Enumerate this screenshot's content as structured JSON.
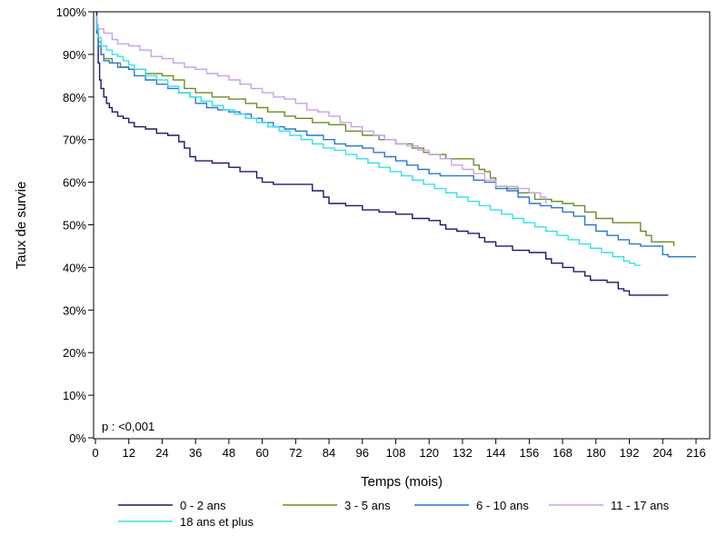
{
  "chart_data": {
    "type": "line",
    "step": true,
    "title": "",
    "xlabel": "Temps (mois)",
    "ylabel": "Taux de survie",
    "xlim": [
      0,
      220
    ],
    "ylim": [
      0,
      100
    ],
    "xticks": [
      0,
      12,
      24,
      36,
      48,
      60,
      72,
      84,
      96,
      108,
      120,
      132,
      144,
      156,
      168,
      180,
      192,
      204,
      216
    ],
    "yticks": [
      0,
      10,
      20,
      30,
      40,
      50,
      60,
      70,
      80,
      90,
      100
    ],
    "ytick_labels": [
      "0%",
      "10%",
      "20%",
      "30%",
      "40%",
      "50%",
      "60%",
      "70%",
      "80%",
      "90%",
      "100%"
    ],
    "grid": false,
    "legend_position": "bottom",
    "annotation": "p : <0,001",
    "series": [
      {
        "name": "0 - 2 ans",
        "color": "#1a1a6e",
        "points": [
          [
            0,
            100
          ],
          [
            0.5,
            95
          ],
          [
            1,
            88
          ],
          [
            1.5,
            84
          ],
          [
            2,
            82
          ],
          [
            3,
            80
          ],
          [
            4,
            78.5
          ],
          [
            5,
            77.5
          ],
          [
            6,
            76.5
          ],
          [
            8,
            75.5
          ],
          [
            10,
            75
          ],
          [
            12,
            74
          ],
          [
            14,
            73
          ],
          [
            18,
            72.5
          ],
          [
            22,
            71.5
          ],
          [
            26,
            71
          ],
          [
            30,
            69.5
          ],
          [
            32,
            68
          ],
          [
            34,
            66
          ],
          [
            36,
            65
          ],
          [
            42,
            64.5
          ],
          [
            48,
            63.5
          ],
          [
            52,
            62.5
          ],
          [
            58,
            61
          ],
          [
            60,
            60
          ],
          [
            64,
            59.5
          ],
          [
            72,
            59.5
          ],
          [
            78,
            58
          ],
          [
            82,
            56.5
          ],
          [
            84,
            55
          ],
          [
            90,
            54.5
          ],
          [
            96,
            53.5
          ],
          [
            102,
            53
          ],
          [
            108,
            52.5
          ],
          [
            114,
            51.5
          ],
          [
            120,
            51
          ],
          [
            124,
            50
          ],
          [
            126,
            49
          ],
          [
            130,
            48.5
          ],
          [
            134,
            48
          ],
          [
            138,
            47
          ],
          [
            140,
            46
          ],
          [
            144,
            45
          ],
          [
            150,
            44
          ],
          [
            156,
            43.5
          ],
          [
            162,
            42
          ],
          [
            164,
            41
          ],
          [
            168,
            40
          ],
          [
            172,
            39
          ],
          [
            176,
            38
          ],
          [
            178,
            37
          ],
          [
            184,
            36.5
          ],
          [
            188,
            35
          ],
          [
            190,
            34.5
          ],
          [
            192,
            33.5
          ],
          [
            198,
            33.5
          ],
          [
            206,
            33.5
          ]
        ]
      },
      {
        "name": "3 - 5 ans",
        "color": "#6b8e23",
        "points": [
          [
            0,
            99
          ],
          [
            0.5,
            96
          ],
          [
            1,
            93
          ],
          [
            2,
            90
          ],
          [
            3,
            89
          ],
          [
            6,
            88
          ],
          [
            9,
            87
          ],
          [
            12,
            86.5
          ],
          [
            18,
            85.5
          ],
          [
            24,
            85
          ],
          [
            28,
            84
          ],
          [
            32,
            82
          ],
          [
            36,
            81
          ],
          [
            42,
            80
          ],
          [
            48,
            79.5
          ],
          [
            54,
            78.5
          ],
          [
            58,
            77.5
          ],
          [
            62,
            76.5
          ],
          [
            68,
            75.5
          ],
          [
            72,
            75
          ],
          [
            78,
            74
          ],
          [
            84,
            73.5
          ],
          [
            90,
            72
          ],
          [
            96,
            71
          ],
          [
            102,
            70
          ],
          [
            108,
            69
          ],
          [
            114,
            68
          ],
          [
            118,
            67
          ],
          [
            120,
            66.5
          ],
          [
            126,
            65.5
          ],
          [
            132,
            65.5
          ],
          [
            136,
            64
          ],
          [
            138,
            63
          ],
          [
            140,
            62.5
          ],
          [
            142,
            61
          ],
          [
            144,
            59
          ],
          [
            148,
            58.5
          ],
          [
            152,
            57.5
          ],
          [
            158,
            56
          ],
          [
            164,
            55.5
          ],
          [
            168,
            55
          ],
          [
            172,
            54.5
          ],
          [
            176,
            53
          ],
          [
            180,
            51.5
          ],
          [
            186,
            50.5
          ],
          [
            192,
            50.5
          ],
          [
            196,
            48.5
          ],
          [
            198,
            47.5
          ],
          [
            200,
            46
          ],
          [
            204,
            46
          ],
          [
            208,
            46
          ],
          [
            208,
            45
          ]
        ]
      },
      {
        "name": "6 - 10 ans",
        "color": "#2b75d4",
        "points": [
          [
            0,
            98
          ],
          [
            0.5,
            95
          ],
          [
            1,
            92
          ],
          [
            2,
            90
          ],
          [
            3,
            88.5
          ],
          [
            5,
            88
          ],
          [
            8,
            87
          ],
          [
            12,
            86.5
          ],
          [
            14,
            85
          ],
          [
            18,
            84
          ],
          [
            22,
            83
          ],
          [
            26,
            82
          ],
          [
            30,
            81
          ],
          [
            34,
            80
          ],
          [
            36,
            78.5
          ],
          [
            40,
            77.5
          ],
          [
            44,
            77
          ],
          [
            48,
            76.5
          ],
          [
            52,
            76
          ],
          [
            56,
            75
          ],
          [
            60,
            74
          ],
          [
            64,
            73
          ],
          [
            68,
            72.5
          ],
          [
            72,
            72
          ],
          [
            76,
            71
          ],
          [
            82,
            70
          ],
          [
            86,
            69
          ],
          [
            90,
            68.5
          ],
          [
            96,
            68
          ],
          [
            100,
            67
          ],
          [
            104,
            66
          ],
          [
            108,
            65
          ],
          [
            112,
            64
          ],
          [
            116,
            63
          ],
          [
            120,
            62
          ],
          [
            124,
            61.5
          ],
          [
            132,
            61.5
          ],
          [
            136,
            60.5
          ],
          [
            140,
            60
          ],
          [
            144,
            58.5
          ],
          [
            148,
            58
          ],
          [
            152,
            56.5
          ],
          [
            156,
            55
          ],
          [
            160,
            54.5
          ],
          [
            164,
            54
          ],
          [
            168,
            53
          ],
          [
            172,
            52
          ],
          [
            176,
            50
          ],
          [
            180,
            48.5
          ],
          [
            184,
            47.5
          ],
          [
            188,
            46.5
          ],
          [
            192,
            45.5
          ],
          [
            196,
            45
          ],
          [
            200,
            45
          ],
          [
            204,
            43
          ],
          [
            206,
            42.5
          ],
          [
            216,
            42.5
          ]
        ]
      },
      {
        "name": "11 - 17 ans",
        "color": "#c9a0e8",
        "points": [
          [
            0,
            99
          ],
          [
            0.5,
            97
          ],
          [
            1,
            96
          ],
          [
            3,
            95
          ],
          [
            6,
            93.5
          ],
          [
            8,
            92.5
          ],
          [
            12,
            92
          ],
          [
            16,
            91
          ],
          [
            20,
            89.5
          ],
          [
            24,
            89
          ],
          [
            28,
            88
          ],
          [
            32,
            87
          ],
          [
            36,
            86.5
          ],
          [
            40,
            85.5
          ],
          [
            44,
            85
          ],
          [
            48,
            84
          ],
          [
            52,
            83
          ],
          [
            56,
            82
          ],
          [
            60,
            81
          ],
          [
            64,
            80
          ],
          [
            68,
            79.5
          ],
          [
            72,
            78.5
          ],
          [
            76,
            77
          ],
          [
            80,
            76.5
          ],
          [
            84,
            75.5
          ],
          [
            88,
            74
          ],
          [
            92,
            73
          ],
          [
            96,
            72
          ],
          [
            100,
            71
          ],
          [
            104,
            70
          ],
          [
            108,
            69
          ],
          [
            112,
            68.5
          ],
          [
            116,
            67.5
          ],
          [
            120,
            66.5
          ],
          [
            124,
            65.5
          ],
          [
            128,
            64
          ],
          [
            132,
            63
          ],
          [
            136,
            62
          ],
          [
            140,
            60.5
          ],
          [
            144,
            59
          ],
          [
            148,
            59
          ],
          [
            152,
            58.5
          ],
          [
            156,
            57.5
          ],
          [
            160,
            56.5
          ],
          [
            162,
            55
          ]
        ]
      },
      {
        "name": "18 ans et plus",
        "color": "#33e0e8",
        "points": [
          [
            0,
            98
          ],
          [
            0.5,
            96
          ],
          [
            1,
            94
          ],
          [
            2,
            92
          ],
          [
            4,
            91
          ],
          [
            6,
            90
          ],
          [
            8,
            89.5
          ],
          [
            10,
            88.5
          ],
          [
            12,
            87.5
          ],
          [
            14,
            86.5
          ],
          [
            18,
            85
          ],
          [
            22,
            84
          ],
          [
            26,
            82.5
          ],
          [
            30,
            81
          ],
          [
            34,
            80
          ],
          [
            38,
            79
          ],
          [
            42,
            78
          ],
          [
            46,
            77
          ],
          [
            50,
            76
          ],
          [
            54,
            75
          ],
          [
            58,
            74
          ],
          [
            62,
            73
          ],
          [
            66,
            72
          ],
          [
            70,
            71
          ],
          [
            74,
            70
          ],
          [
            78,
            69
          ],
          [
            82,
            68
          ],
          [
            86,
            67.5
          ],
          [
            90,
            66.5
          ],
          [
            94,
            65.5
          ],
          [
            98,
            64.5
          ],
          [
            102,
            63.5
          ],
          [
            106,
            62.5
          ],
          [
            110,
            61.5
          ],
          [
            114,
            60.5
          ],
          [
            118,
            59.5
          ],
          [
            122,
            58.5
          ],
          [
            126,
            57.5
          ],
          [
            130,
            56.5
          ],
          [
            134,
            55.5
          ],
          [
            138,
            54.5
          ],
          [
            142,
            53.5
          ],
          [
            146,
            52.5
          ],
          [
            150,
            51.5
          ],
          [
            154,
            50.5
          ],
          [
            158,
            49.5
          ],
          [
            162,
            48.5
          ],
          [
            166,
            47.5
          ],
          [
            170,
            46.5
          ],
          [
            174,
            45.5
          ],
          [
            178,
            44.5
          ],
          [
            182,
            43.5
          ],
          [
            186,
            42.5
          ],
          [
            190,
            41.5
          ],
          [
            192,
            41
          ],
          [
            194,
            40.5
          ],
          [
            196,
            40.5
          ]
        ]
      }
    ]
  }
}
